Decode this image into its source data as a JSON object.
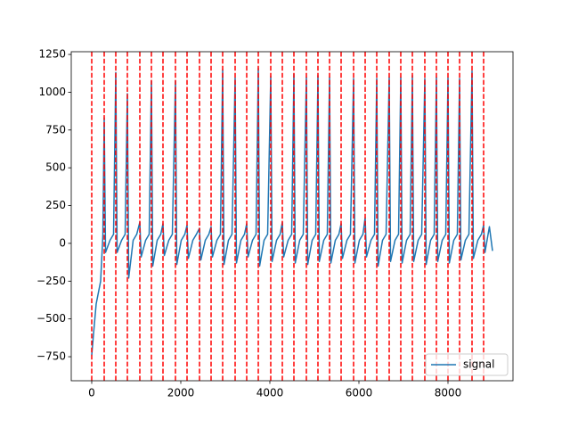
{
  "chart_data": {
    "type": "line",
    "x": [
      0,
      40,
      100,
      200,
      250,
      280,
      310,
      410,
      490,
      540,
      570,
      670,
      750,
      800,
      830,
      930,
      1010,
      1080,
      1110,
      1210,
      1290,
      1340,
      1370,
      1470,
      1550,
      1600,
      1630,
      1730,
      1810,
      1880,
      1910,
      2010,
      2090,
      2140,
      2170,
      2270,
      2350,
      2420,
      2450,
      2550,
      2630,
      2680,
      2710,
      2810,
      2890,
      2940,
      2970,
      3070,
      3150,
      3220,
      3250,
      3350,
      3430,
      3480,
      3510,
      3610,
      3690,
      3740,
      3770,
      3870,
      3950,
      4020,
      4050,
      4150,
      4230,
      4280,
      4310,
      4410,
      4490,
      4540,
      4570,
      4670,
      4750,
      4820,
      4850,
      4950,
      5030,
      5080,
      5110,
      5210,
      5290,
      5340,
      5370,
      5470,
      5550,
      5600,
      5630,
      5730,
      5810,
      5880,
      5910,
      6010,
      6090,
      6140,
      6170,
      6270,
      6350,
      6400,
      6430,
      6530,
      6610,
      6680,
      6710,
      6810,
      6890,
      6940,
      6970,
      7070,
      7150,
      7200,
      7230,
      7330,
      7410,
      7480,
      7510,
      7610,
      7690,
      7740,
      7770,
      7870,
      7950,
      8000,
      8030,
      8130,
      8210,
      8260,
      8290,
      8390,
      8470,
      8540,
      8570,
      8670,
      8750,
      8800,
      8830,
      8930,
      9000
    ],
    "series": [
      {
        "name": "signal",
        "color": "#1f77b4",
        "values": [
          -740,
          -600,
          -400,
          -250,
          50,
          830,
          -60,
          20,
          60,
          1130,
          -60,
          20,
          60,
          990,
          -230,
          20,
          60,
          140,
          -90,
          20,
          60,
          1075,
          -150,
          20,
          60,
          130,
          -80,
          20,
          60,
          1075,
          -140,
          20,
          60,
          120,
          -100,
          20,
          60,
          100,
          -110,
          20,
          60,
          110,
          -90,
          20,
          60,
          1150,
          -140,
          20,
          60,
          1095,
          -130,
          20,
          60,
          130,
          -90,
          20,
          60,
          1160,
          -150,
          20,
          60,
          1105,
          -120,
          20,
          60,
          140,
          -90,
          20,
          60,
          1120,
          -130,
          20,
          60,
          1100,
          -140,
          20,
          60,
          1110,
          -120,
          20,
          60,
          1100,
          -130,
          20,
          60,
          130,
          -100,
          20,
          60,
          1090,
          -130,
          20,
          60,
          170,
          -90,
          20,
          60,
          1090,
          -150,
          20,
          60,
          1100,
          -120,
          20,
          60,
          1100,
          -130,
          20,
          60,
          1110,
          -120,
          20,
          60,
          1090,
          -140,
          20,
          60,
          1100,
          -120,
          20,
          60,
          1095,
          -130,
          20,
          60,
          1090,
          -110,
          20,
          60,
          1140,
          -100,
          20,
          60,
          120,
          -60,
          110,
          -50
        ]
      }
    ],
    "vlines": {
      "color": "#ff0000",
      "values": [
        0,
        280,
        540,
        800,
        1080,
        1340,
        1600,
        1880,
        2140,
        2420,
        2680,
        2940,
        3220,
        3480,
        3740,
        4020,
        4280,
        4540,
        4820,
        5080,
        5340,
        5600,
        5880,
        6140,
        6400,
        6680,
        6940,
        7200,
        7480,
        7740,
        8000,
        8260,
        8540,
        8800
      ]
    },
    "xlim": [
      -460,
      9460
    ],
    "ylim": [
      -909,
      1268
    ],
    "xticks": [
      0,
      2000,
      4000,
      6000,
      8000
    ],
    "yticks": [
      {
        "value": -750,
        "label": "−750"
      },
      {
        "value": -500,
        "label": "−500"
      },
      {
        "value": -250,
        "label": "−250"
      },
      0,
      250,
      500,
      750,
      1000,
      1250
    ],
    "legend": "lower right"
  }
}
